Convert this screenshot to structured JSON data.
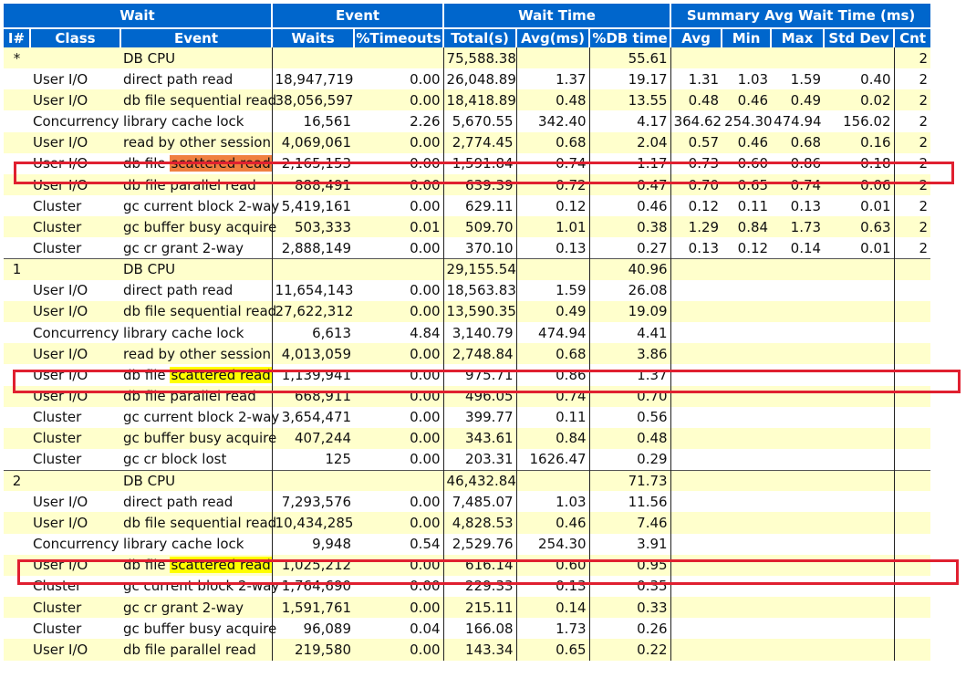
{
  "colors": {
    "header_bg": "#0066cc",
    "row_alt": "#ffffcc",
    "highlight_orange": "#f08040",
    "highlight_yellow": "#ffff00",
    "box_red": "#e02030"
  },
  "header": {
    "groups": [
      "Wait",
      "Event",
      "Wait Time",
      "Summary Avg Wait Time (ms)"
    ],
    "columns": [
      "I#",
      "Class",
      "Event",
      "Waits",
      "%Timeouts",
      "Total(s)",
      "Avg(ms)",
      "%DB time",
      "Avg",
      "Min",
      "Max",
      "Std Dev",
      "Cnt"
    ]
  },
  "rows": [
    {
      "inst": "*",
      "cls": "",
      "event": "DB CPU",
      "waits": "",
      "timeouts": "",
      "total": "75,588.38",
      "avg": "",
      "dbtime": "55.61",
      "s_avg": "",
      "s_min": "",
      "s_max": "",
      "s_std": "",
      "cnt": "2"
    },
    {
      "inst": "",
      "cls": "User I/O",
      "event": "direct path read",
      "waits": "18,947,719",
      "timeouts": "0.00",
      "total": "26,048.89",
      "avg": "1.37",
      "dbtime": "19.17",
      "s_avg": "1.31",
      "s_min": "1.03",
      "s_max": "1.59",
      "s_std": "0.40",
      "cnt": "2"
    },
    {
      "inst": "",
      "cls": "User I/O",
      "event": "db file sequential read",
      "waits": "38,056,597",
      "timeouts": "0.00",
      "total": "18,418.89",
      "avg": "0.48",
      "dbtime": "13.55",
      "s_avg": "0.48",
      "s_min": "0.46",
      "s_max": "0.49",
      "s_std": "0.02",
      "cnt": "2"
    },
    {
      "inst": "",
      "cls": "Concurrency",
      "event": "library cache lock",
      "waits": "16,561",
      "timeouts": "2.26",
      "total": "5,670.55",
      "avg": "342.40",
      "dbtime": "4.17",
      "s_avg": "364.62",
      "s_min": "254.30",
      "s_max": "474.94",
      "s_std": "156.02",
      "cnt": "2"
    },
    {
      "inst": "",
      "cls": "User I/O",
      "event": "read by other session",
      "waits": "4,069,061",
      "timeouts": "0.00",
      "total": "2,774.45",
      "avg": "0.68",
      "dbtime": "2.04",
      "s_avg": "0.57",
      "s_min": "0.46",
      "s_max": "0.68",
      "s_std": "0.16",
      "cnt": "2"
    },
    {
      "inst": "",
      "cls": "User I/O",
      "event": "db file ",
      "event_hl": "scattered read",
      "hl": "orange",
      "waits": "2,165,153",
      "timeouts": "0.00",
      "total": "1,591.84",
      "avg": "0.74",
      "dbtime": "1.17",
      "s_avg": "0.73",
      "s_min": "0.60",
      "s_max": "0.86",
      "s_std": "0.18",
      "cnt": "2"
    },
    {
      "inst": "",
      "cls": "User I/O",
      "event": "db file parallel read",
      "waits": "888,491",
      "timeouts": "0.00",
      "total": "639.39",
      "avg": "0.72",
      "dbtime": "0.47",
      "s_avg": "0.70",
      "s_min": "0.65",
      "s_max": "0.74",
      "s_std": "0.06",
      "cnt": "2"
    },
    {
      "inst": "",
      "cls": "Cluster",
      "event": "gc current block 2-way",
      "waits": "5,419,161",
      "timeouts": "0.00",
      "total": "629.11",
      "avg": "0.12",
      "dbtime": "0.46",
      "s_avg": "0.12",
      "s_min": "0.11",
      "s_max": "0.13",
      "s_std": "0.01",
      "cnt": "2"
    },
    {
      "inst": "",
      "cls": "Cluster",
      "event": "gc buffer busy acquire",
      "waits": "503,333",
      "timeouts": "0.01",
      "total": "509.70",
      "avg": "1.01",
      "dbtime": "0.38",
      "s_avg": "1.29",
      "s_min": "0.84",
      "s_max": "1.73",
      "s_std": "0.63",
      "cnt": "2"
    },
    {
      "inst": "",
      "cls": "Cluster",
      "event": "gc cr grant 2-way",
      "waits": "2,888,149",
      "timeouts": "0.00",
      "total": "370.10",
      "avg": "0.13",
      "dbtime": "0.27",
      "s_avg": "0.13",
      "s_min": "0.12",
      "s_max": "0.14",
      "s_std": "0.01",
      "cnt": "2"
    },
    {
      "inst": "1",
      "cls": "",
      "event": "DB CPU",
      "waits": "",
      "timeouts": "",
      "total": "29,155.54",
      "avg": "",
      "dbtime": "40.96",
      "s_avg": "",
      "s_min": "",
      "s_max": "",
      "s_std": "",
      "cnt": ""
    },
    {
      "inst": "",
      "cls": "User I/O",
      "event": "direct path read",
      "waits": "11,654,143",
      "timeouts": "0.00",
      "total": "18,563.83",
      "avg": "1.59",
      "dbtime": "26.08",
      "s_avg": "",
      "s_min": "",
      "s_max": "",
      "s_std": "",
      "cnt": ""
    },
    {
      "inst": "",
      "cls": "User I/O",
      "event": "db file sequential read",
      "waits": "27,622,312",
      "timeouts": "0.00",
      "total": "13,590.35",
      "avg": "0.49",
      "dbtime": "19.09",
      "s_avg": "",
      "s_min": "",
      "s_max": "",
      "s_std": "",
      "cnt": ""
    },
    {
      "inst": "",
      "cls": "Concurrency",
      "event": "library cache lock",
      "waits": "6,613",
      "timeouts": "4.84",
      "total": "3,140.79",
      "avg": "474.94",
      "dbtime": "4.41",
      "s_avg": "",
      "s_min": "",
      "s_max": "",
      "s_std": "",
      "cnt": ""
    },
    {
      "inst": "",
      "cls": "User I/O",
      "event": "read by other session",
      "waits": "4,013,059",
      "timeouts": "0.00",
      "total": "2,748.84",
      "avg": "0.68",
      "dbtime": "3.86",
      "s_avg": "",
      "s_min": "",
      "s_max": "",
      "s_std": "",
      "cnt": ""
    },
    {
      "inst": "",
      "cls": "User I/O",
      "event": "db file ",
      "event_hl": "scattered read",
      "hl": "yellow",
      "waits": "1,139,941",
      "timeouts": "0.00",
      "total": "975.71",
      "avg": "0.86",
      "dbtime": "1.37",
      "s_avg": "",
      "s_min": "",
      "s_max": "",
      "s_std": "",
      "cnt": ""
    },
    {
      "inst": "",
      "cls": "User I/O",
      "event": "db file parallel read",
      "waits": "668,911",
      "timeouts": "0.00",
      "total": "496.05",
      "avg": "0.74",
      "dbtime": "0.70",
      "s_avg": "",
      "s_min": "",
      "s_max": "",
      "s_std": "",
      "cnt": ""
    },
    {
      "inst": "",
      "cls": "Cluster",
      "event": "gc current block 2-way",
      "waits": "3,654,471",
      "timeouts": "0.00",
      "total": "399.77",
      "avg": "0.11",
      "dbtime": "0.56",
      "s_avg": "",
      "s_min": "",
      "s_max": "",
      "s_std": "",
      "cnt": ""
    },
    {
      "inst": "",
      "cls": "Cluster",
      "event": "gc buffer busy acquire",
      "waits": "407,244",
      "timeouts": "0.00",
      "total": "343.61",
      "avg": "0.84",
      "dbtime": "0.48",
      "s_avg": "",
      "s_min": "",
      "s_max": "",
      "s_std": "",
      "cnt": ""
    },
    {
      "inst": "",
      "cls": "Cluster",
      "event": "gc cr block lost",
      "waits": "125",
      "timeouts": "0.00",
      "total": "203.31",
      "avg": "1626.47",
      "dbtime": "0.29",
      "s_avg": "",
      "s_min": "",
      "s_max": "",
      "s_std": "",
      "cnt": ""
    },
    {
      "inst": "2",
      "cls": "",
      "event": "DB CPU",
      "waits": "",
      "timeouts": "",
      "total": "46,432.84",
      "avg": "",
      "dbtime": "71.73",
      "s_avg": "",
      "s_min": "",
      "s_max": "",
      "s_std": "",
      "cnt": ""
    },
    {
      "inst": "",
      "cls": "User I/O",
      "event": "direct path read",
      "waits": "7,293,576",
      "timeouts": "0.00",
      "total": "7,485.07",
      "avg": "1.03",
      "dbtime": "11.56",
      "s_avg": "",
      "s_min": "",
      "s_max": "",
      "s_std": "",
      "cnt": ""
    },
    {
      "inst": "",
      "cls": "User I/O",
      "event": "db file sequential read",
      "waits": "10,434,285",
      "timeouts": "0.00",
      "total": "4,828.53",
      "avg": "0.46",
      "dbtime": "7.46",
      "s_avg": "",
      "s_min": "",
      "s_max": "",
      "s_std": "",
      "cnt": ""
    },
    {
      "inst": "",
      "cls": "Concurrency",
      "event": "library cache lock",
      "waits": "9,948",
      "timeouts": "0.54",
      "total": "2,529.76",
      "avg": "254.30",
      "dbtime": "3.91",
      "s_avg": "",
      "s_min": "",
      "s_max": "",
      "s_std": "",
      "cnt": ""
    },
    {
      "inst": "",
      "cls": "User I/O",
      "event": "db file ",
      "event_hl": "scattered read",
      "hl": "yellow",
      "waits": "1,025,212",
      "timeouts": "0.00",
      "total": "616.14",
      "avg": "0.60",
      "dbtime": "0.95",
      "s_avg": "",
      "s_min": "",
      "s_max": "",
      "s_std": "",
      "cnt": ""
    },
    {
      "inst": "",
      "cls": "Cluster",
      "event": "gc current block 2-way",
      "waits": "1,764,690",
      "timeouts": "0.00",
      "total": "229.33",
      "avg": "0.13",
      "dbtime": "0.35",
      "s_avg": "",
      "s_min": "",
      "s_max": "",
      "s_std": "",
      "cnt": ""
    },
    {
      "inst": "",
      "cls": "Cluster",
      "event": "gc cr grant 2-way",
      "waits": "1,591,761",
      "timeouts": "0.00",
      "total": "215.11",
      "avg": "0.14",
      "dbtime": "0.33",
      "s_avg": "",
      "s_min": "",
      "s_max": "",
      "s_std": "",
      "cnt": ""
    },
    {
      "inst": "",
      "cls": "Cluster",
      "event": "gc buffer busy acquire",
      "waits": "96,089",
      "timeouts": "0.04",
      "total": "166.08",
      "avg": "1.73",
      "dbtime": "0.26",
      "s_avg": "",
      "s_min": "",
      "s_max": "",
      "s_std": "",
      "cnt": ""
    },
    {
      "inst": "",
      "cls": "User I/O",
      "event": "db file parallel read",
      "waits": "219,580",
      "timeouts": "0.00",
      "total": "143.34",
      "avg": "0.65",
      "dbtime": "0.22",
      "s_avg": "",
      "s_min": "",
      "s_max": "",
      "s_std": "",
      "cnt": ""
    }
  ]
}
